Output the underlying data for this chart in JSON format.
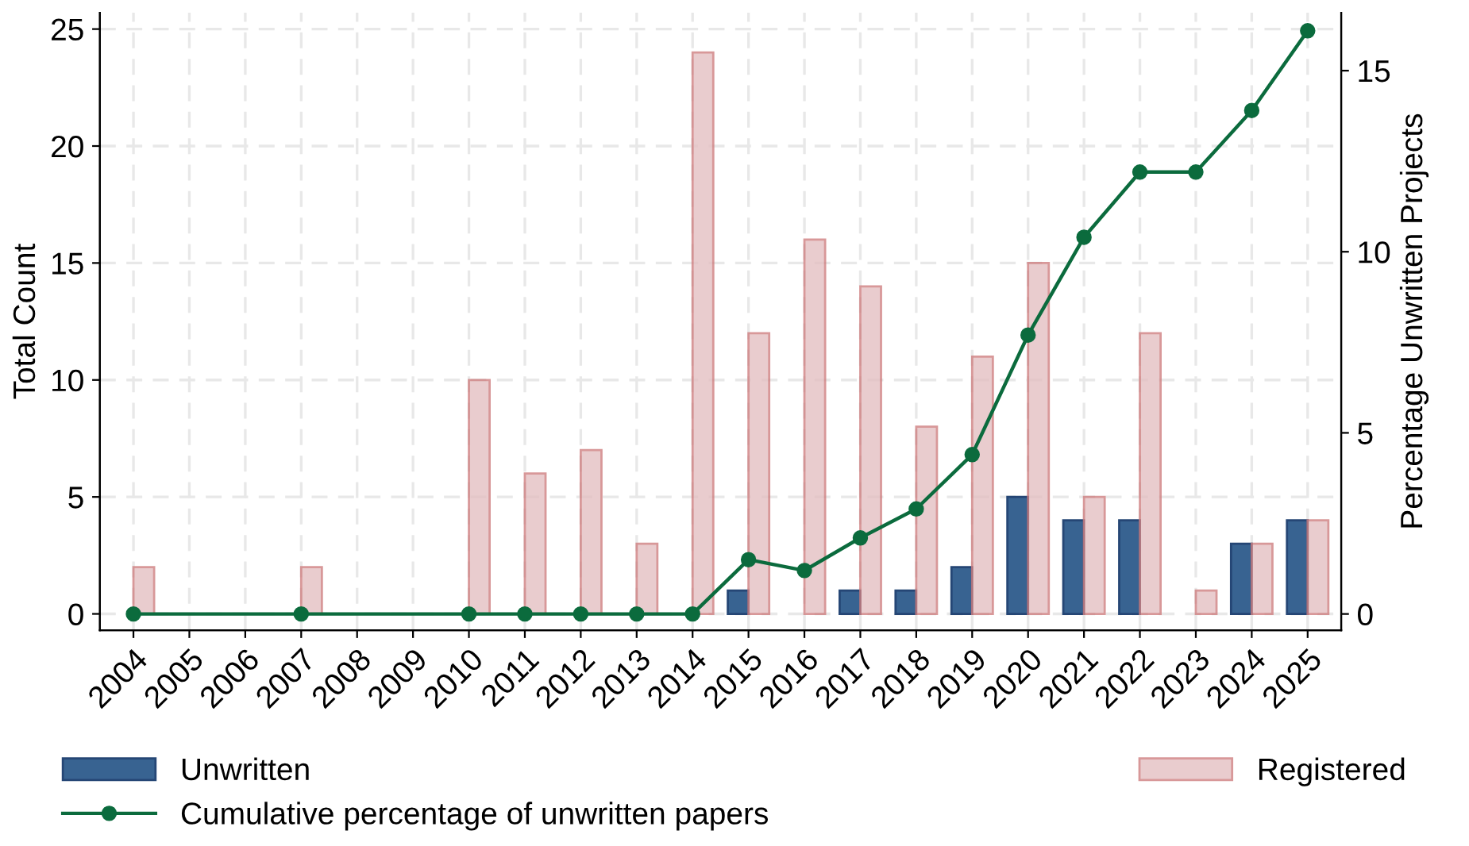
{
  "chart_data": {
    "type": "bar",
    "ylabel": "Total Count",
    "y2label": "Percentage Unwritten Projects",
    "categories": [
      "2004",
      "2005",
      "2006",
      "2007",
      "2008",
      "2009",
      "2010",
      "2011",
      "2012",
      "2013",
      "2014",
      "2015",
      "2016",
      "2017",
      "2018",
      "2019",
      "2020",
      "2021",
      "2022",
      "2023",
      "2024",
      "2025"
    ],
    "series": [
      {
        "name": "Unwritten",
        "color": "#2e5b8c",
        "values": [
          null,
          null,
          null,
          null,
          null,
          null,
          null,
          null,
          null,
          null,
          null,
          1,
          null,
          1,
          1,
          2,
          5,
          4,
          4,
          null,
          3,
          4
        ]
      },
      {
        "name": "Registered",
        "color": "#e4c0c2",
        "values": [
          2,
          null,
          null,
          2,
          null,
          null,
          10,
          6,
          7,
          3,
          24,
          12,
          16,
          14,
          8,
          11,
          15,
          5,
          12,
          1,
          3,
          4
        ]
      },
      {
        "name": "Cumulative percentage of unwritten papers",
        "type": "line",
        "axis": "y2",
        "color": "#0b6b3d",
        "values": [
          0,
          null,
          null,
          0,
          null,
          null,
          0,
          0,
          0,
          0,
          0,
          1.5,
          1.2,
          2.1,
          2.9,
          4.4,
          7.7,
          10.4,
          12.2,
          12.2,
          13.9,
          16.1
        ]
      }
    ],
    "ylim": [
      -0.7,
      25.7
    ],
    "yticks": [
      0,
      5,
      10,
      15,
      20,
      25
    ],
    "y2lim": [
      -0.45,
      16.6
    ],
    "y2ticks": [
      0,
      5,
      10,
      15
    ],
    "grid": true,
    "legend": "bottom",
    "marker": "circle",
    "line_style": "solid"
  }
}
